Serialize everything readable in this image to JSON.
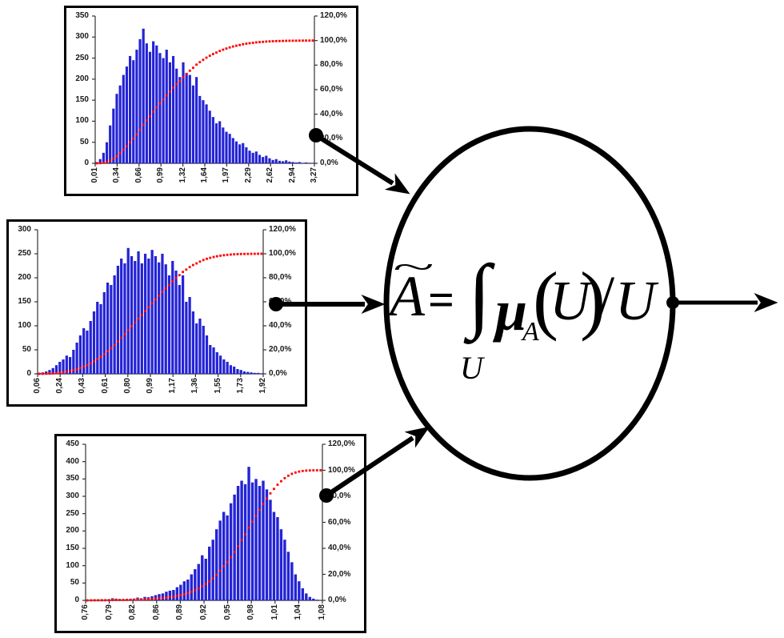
{
  "diagram": {
    "formula": {
      "tilde": "~",
      "lhs": "A",
      "equals": "=",
      "integral": "∫",
      "integral_domain": "U",
      "mu": "μ",
      "mu_sub": "A",
      "lparen": "(",
      "arg": "U",
      "rparen": ")",
      "slash": "/",
      "denominator": "U"
    },
    "colors": {
      "bar": "#2323d6",
      "curve": "#ff0000",
      "ink": "#000000",
      "axis": "#333333"
    }
  },
  "chart_data": [
    {
      "type": "bar",
      "subtype": "histogram-with-cumulative-line",
      "title": "",
      "xlabel": "",
      "ylabel": "",
      "legend": "off",
      "grid": "off",
      "left_axis_ticks": [
        "350",
        "300",
        "250",
        "200",
        "150",
        "100",
        "50",
        "0"
      ],
      "left_axis_max": 350,
      "right_axis_ticks": [
        "120,0%",
        "100,0%",
        "80,0%",
        "60,0%",
        "40,0%",
        "20,0%",
        "0,0%"
      ],
      "right_axis_max_pct": 120,
      "x_tick_labels": [
        "0,01",
        "0,34",
        "0,66",
        "0,99",
        "1,32",
        "1,64",
        "1,97",
        "2,29",
        "2,62",
        "2,94",
        "3,27"
      ],
      "bar_values": [
        3,
        10,
        25,
        50,
        90,
        130,
        165,
        185,
        210,
        230,
        255,
        245,
        270,
        295,
        320,
        285,
        265,
        290,
        280,
        262,
        250,
        270,
        240,
        255,
        225,
        205,
        240,
        215,
        210,
        185,
        205,
        160,
        150,
        140,
        125,
        110,
        95,
        100,
        85,
        75,
        70,
        60,
        52,
        45,
        48,
        38,
        30,
        25,
        28,
        20,
        15,
        18,
        12,
        8,
        10,
        6,
        5,
        7,
        4,
        3,
        2,
        3,
        1,
        2,
        1,
        1
      ],
      "cumulative_series": "running-sum of bar_values scaled 0-100% on right axis"
    },
    {
      "type": "bar",
      "subtype": "histogram-with-cumulative-line",
      "title": "",
      "xlabel": "",
      "ylabel": "",
      "legend": "off",
      "grid": "off",
      "left_axis_ticks": [
        "300",
        "250",
        "200",
        "150",
        "100",
        "50",
        "0"
      ],
      "left_axis_max": 300,
      "right_axis_ticks": [
        "120,0%",
        "100,0%",
        "80,0%",
        "60,0%",
        "40,0%",
        "20,0%",
        "0,0%"
      ],
      "right_axis_max_pct": 120,
      "x_tick_labels": [
        "0,06",
        "0,24",
        "0,43",
        "0,61",
        "0,80",
        "0,99",
        "1,17",
        "1,36",
        "1,55",
        "1,73",
        "1,92"
      ],
      "bar_values": [
        2,
        3,
        5,
        8,
        12,
        18,
        25,
        30,
        38,
        35,
        50,
        65,
        80,
        95,
        90,
        110,
        130,
        150,
        145,
        170,
        190,
        185,
        205,
        225,
        240,
        230,
        262,
        245,
        235,
        255,
        230,
        250,
        240,
        258,
        245,
        232,
        250,
        228,
        205,
        235,
        215,
        185,
        205,
        150,
        160,
        130,
        105,
        115,
        100,
        80,
        60,
        55,
        45,
        38,
        30,
        25,
        18,
        15,
        10,
        8,
        5,
        4,
        3,
        2,
        2,
        1
      ],
      "cumulative_series": "running-sum of bar_values scaled 0-100% on right axis"
    },
    {
      "type": "bar",
      "subtype": "histogram-with-cumulative-line",
      "title": "",
      "xlabel": "",
      "ylabel": "",
      "legend": "off",
      "grid": "off",
      "left_axis_ticks": [
        "450",
        "400",
        "350",
        "300",
        "250",
        "200",
        "150",
        "100",
        "50",
        "0"
      ],
      "left_axis_max": 450,
      "right_axis_ticks": [
        "120,0%",
        "100,0%",
        "80,0%",
        "60,0%",
        "40,0%",
        "20,0%",
        "0,0%"
      ],
      "right_axis_max_pct": 120,
      "x_tick_labels": [
        "0,76",
        "0,79",
        "0,82",
        "0,86",
        "0,89",
        "0,92",
        "0,95",
        "0,98",
        "1,01",
        "1,04",
        "1,08"
      ],
      "bar_values": [
        1,
        1,
        2,
        1,
        2,
        2,
        3,
        6,
        5,
        3,
        2,
        3,
        4,
        5,
        8,
        6,
        10,
        9,
        12,
        15,
        18,
        20,
        25,
        28,
        30,
        38,
        45,
        55,
        60,
        75,
        90,
        105,
        130,
        120,
        155,
        175,
        205,
        230,
        255,
        245,
        280,
        305,
        330,
        345,
        335,
        385,
        340,
        350,
        330,
        345,
        320,
        290,
        255,
        240,
        205,
        175,
        140,
        110,
        75,
        55,
        35,
        20,
        10,
        5,
        2,
        1
      ],
      "cumulative_series": "running-sum of bar_values scaled 0-100% on right axis"
    }
  ]
}
